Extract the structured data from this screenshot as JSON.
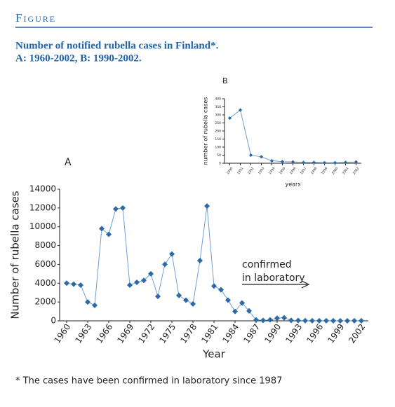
{
  "header": {
    "label": "Figure",
    "title": [
      "Number of notified rubella cases in Finland*.",
      "A: 1960-2002, B: 1990-2002."
    ]
  },
  "chart_data": [
    {
      "type": "line",
      "title": "A",
      "x_label": "Year",
      "y_label": "Number of rubella cases",
      "x": [
        1960,
        1961,
        1962,
        1963,
        1964,
        1965,
        1966,
        1967,
        1968,
        1969,
        1970,
        1971,
        1972,
        1973,
        1974,
        1975,
        1976,
        1977,
        1978,
        1979,
        1980,
        1981,
        1982,
        1983,
        1984,
        1985,
        1986,
        1987,
        1988,
        1989,
        1990,
        1991,
        1992,
        1993,
        1994,
        1995,
        1996,
        1997,
        1998,
        1999,
        2000,
        2001,
        2002
      ],
      "values": [
        4000,
        3900,
        3800,
        2000,
        1650,
        9800,
        9200,
        11900,
        12000,
        3800,
        4100,
        4300,
        5000,
        2600,
        6000,
        7100,
        2700,
        2200,
        1800,
        6400,
        12200,
        3700,
        3300,
        2200,
        1000,
        1900,
        1050,
        100,
        50,
        100,
        280,
        330,
        50,
        40,
        15,
        10,
        8,
        5,
        5,
        3,
        3,
        5,
        8
      ],
      "color": "#2b69a8",
      "xlim": [
        1959,
        2003
      ],
      "xticks": [
        1960,
        1963,
        1966,
        1969,
        1972,
        1975,
        1978,
        1981,
        1984,
        1987,
        1990,
        1993,
        1996,
        1999,
        2002
      ],
      "ylim": [
        0,
        14000
      ],
      "yticks": [
        0,
        2000,
        4000,
        6000,
        8000,
        10000,
        12000,
        14000
      ],
      "annotation": [
        "confirmed",
        "in laboratory"
      ]
    },
    {
      "type": "line",
      "title": "B",
      "x_label": "years",
      "y_label": "number of rubella cases",
      "x": [
        1990,
        1991,
        1992,
        1993,
        1994,
        1995,
        1996,
        1997,
        1998,
        1999,
        2000,
        2001,
        2002
      ],
      "values": [
        280,
        330,
        50,
        40,
        15,
        10,
        8,
        5,
        5,
        3,
        3,
        5,
        8
      ],
      "color": "#2b69a8",
      "xlim": [
        1989.5,
        2002.5
      ],
      "xticks": [
        1990,
        1991,
        1992,
        1993,
        1994,
        1995,
        1996,
        1997,
        1998,
        1999,
        2000,
        2001,
        2002
      ],
      "ylim": [
        0,
        400
      ],
      "yticks": [
        0,
        50,
        100,
        150,
        200,
        250,
        300,
        350,
        400
      ]
    }
  ],
  "footnote": "* The cases have been confirmed in laboratory since 1987"
}
